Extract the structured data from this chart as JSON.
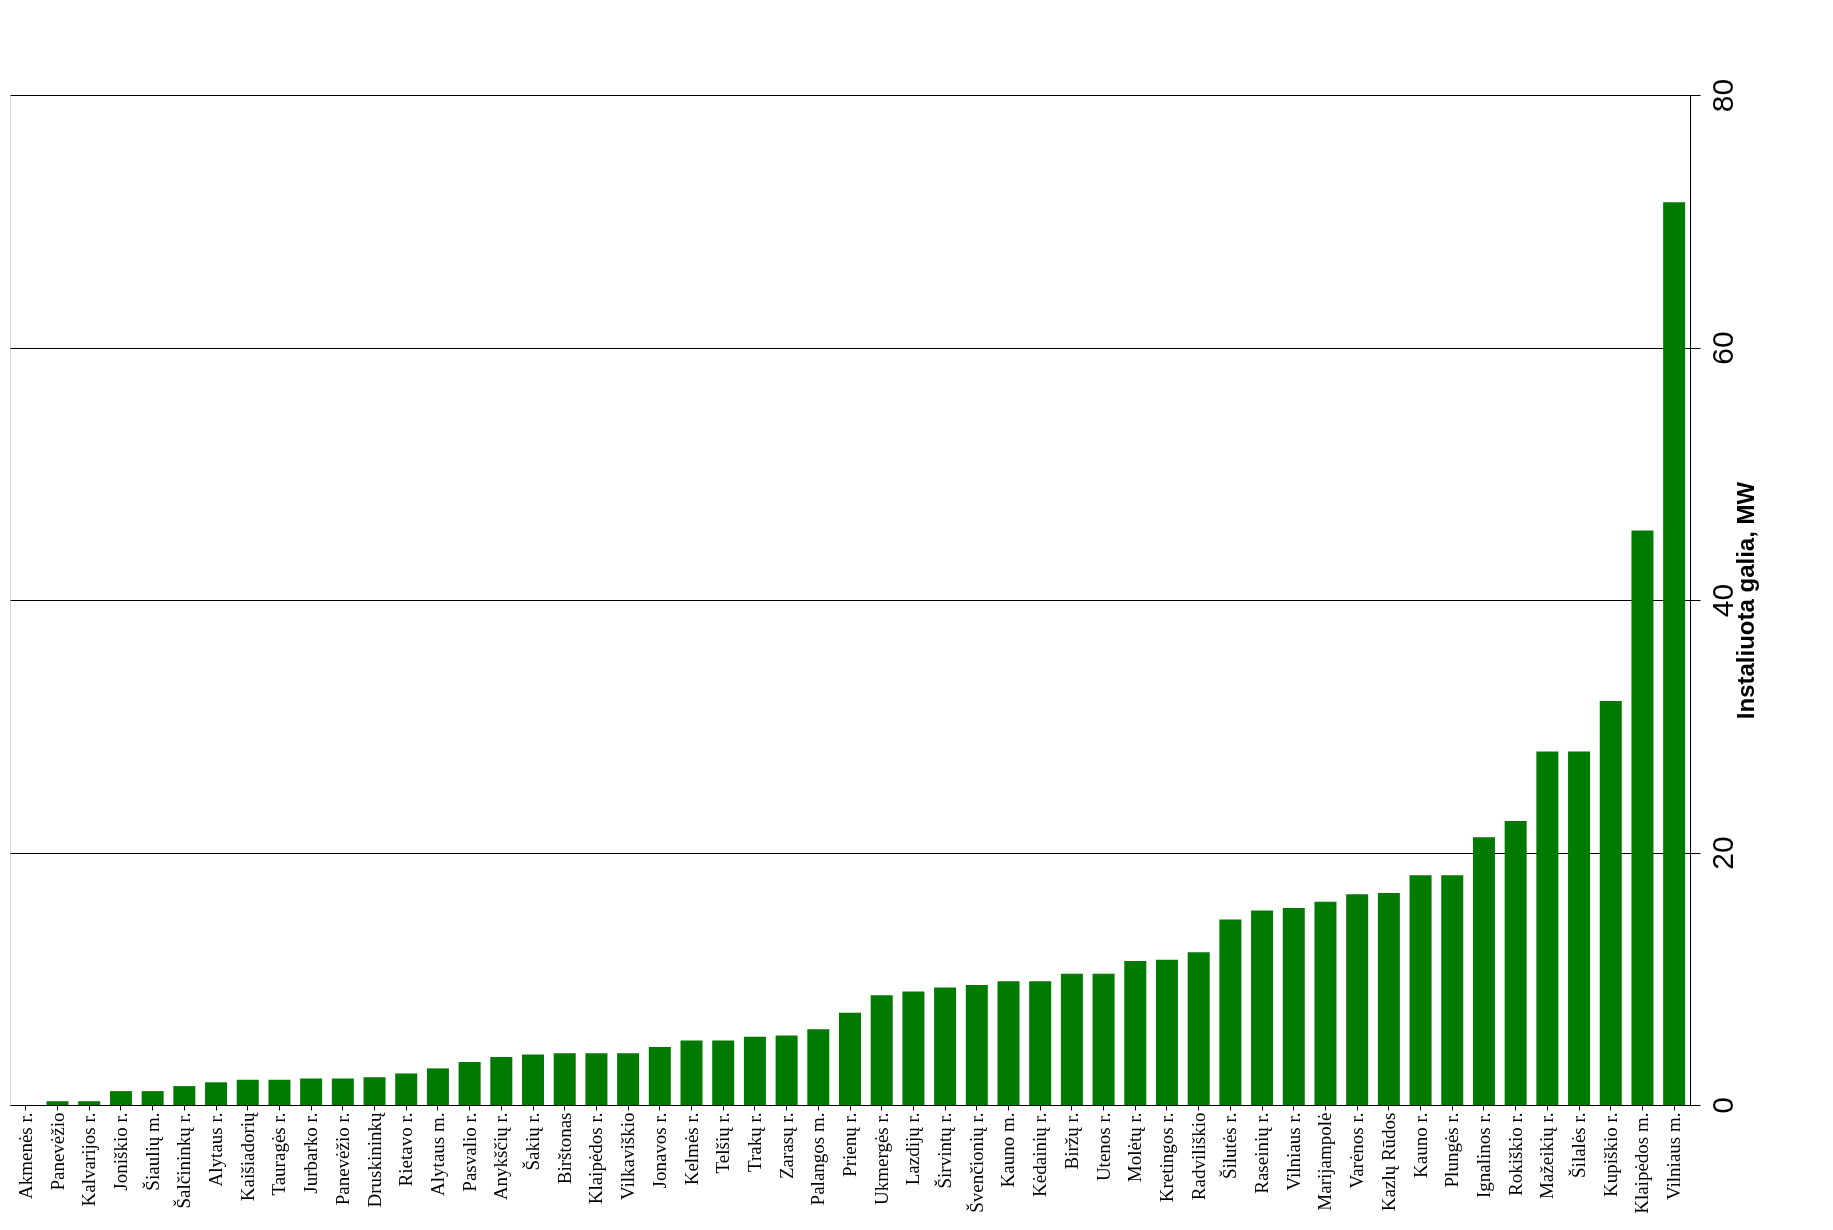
{
  "chart_data": {
    "type": "bar",
    "ylabel": "Instaliuota galia, MW",
    "categories": [
      "Akmenės r.",
      "Panevėžio",
      "Kalvarijos r.",
      "Joniškio r.",
      "Šiaulių m.",
      "Šalčininkų r.",
      "Alytaus r.",
      "Kaišiadorių",
      "Tauragės r.",
      "Jurbarko r.",
      "Panevėžio r.",
      "Druskininkų",
      "Rietavo r.",
      "Alytaus m.",
      "Pasvalio r.",
      "Anykščių r.",
      "Šakių r.",
      "Birštonas",
      "Klaipėdos r.",
      "Vilkaviškio",
      "Jonavos r.",
      "Kelmės r.",
      "Telšių r.",
      "Trakų r.",
      "Zarasų r.",
      "Palangos m.",
      "Prienų r.",
      "Ukmergės r.",
      "Lazdijų r.",
      "Širvintų r.",
      "Švenčionių r.",
      "Kauno m.",
      "Kėdainių r.",
      "Biržų r.",
      "Utenos r.",
      "Molėtų r.",
      "Kretingos r.",
      "Radviliškio",
      "Šilutės r.",
      "Raseinių r.",
      "Vilniaus r.",
      "Marijampolė",
      "Varėnos r.",
      "Kazlų Rūdos",
      "Kauno r.",
      "Plungės r.",
      "Ignalinos r.",
      "Rokiškio r.",
      "Mažeikių r.",
      "Šilalės r.",
      "Kupiškio r.",
      "Klaipėdos m.",
      "Vilniaus m."
    ],
    "values": [
      0,
      0.3,
      0.3,
      1.1,
      1.1,
      1.5,
      1.8,
      2.0,
      2.0,
      2.1,
      2.1,
      2.2,
      2.5,
      2.9,
      3.4,
      3.8,
      4.0,
      4.1,
      4.1,
      4.1,
      4.6,
      5.1,
      5.1,
      5.4,
      5.5,
      6.0,
      7.3,
      8.7,
      9.0,
      9.3,
      9.5,
      9.8,
      9.8,
      10.4,
      10.4,
      11.4,
      11.5,
      12.1,
      14.7,
      15.4,
      15.6,
      16.1,
      16.7,
      16.8,
      18.2,
      18.2,
      21.2,
      22.5,
      28.0,
      28.0,
      32.0,
      45.5,
      71.5
    ],
    "color": "#007a00",
    "ylim": [
      0,
      80
    ],
    "yticks": [
      0,
      20,
      40,
      60,
      80
    ],
    "grid": "y",
    "legend": false
  }
}
